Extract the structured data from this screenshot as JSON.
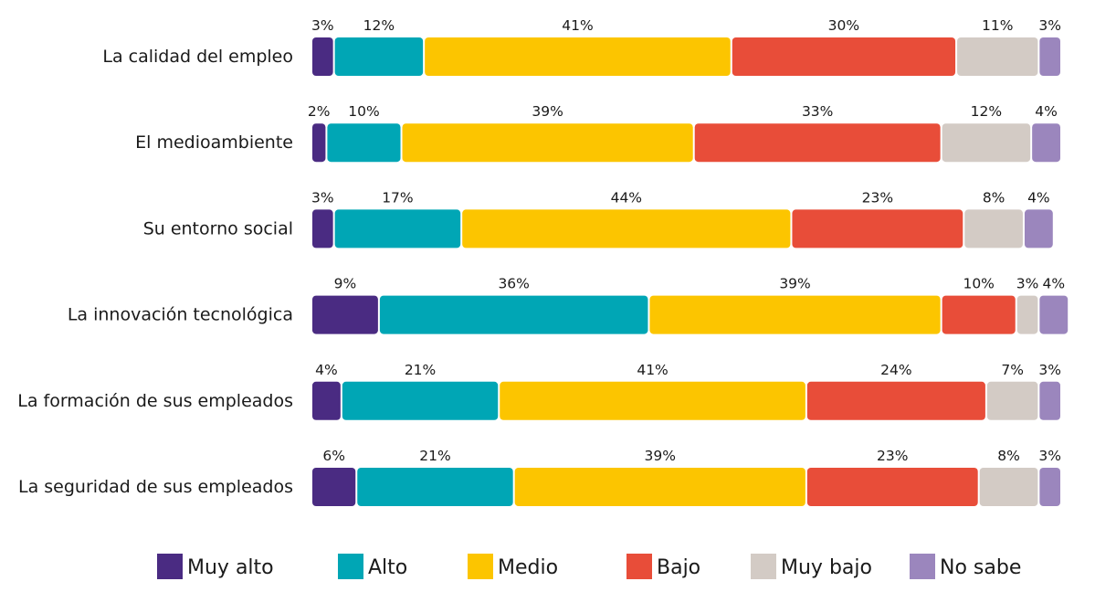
{
  "chart_data": {
    "type": "bar",
    "orientation": "horizontal",
    "stacked": true,
    "percent_stacked": true,
    "title": "",
    "xlabel": "",
    "ylabel": "",
    "xlim": [
      0,
      100
    ],
    "grid": false,
    "legend_position": "bottom",
    "categories": [
      "La calidad del empleo",
      "El medioambiente",
      "Su entorno social",
      "La innovación tecnológica",
      "La formación de sus empleados",
      "La seguridad de sus empleados"
    ],
    "series": [
      {
        "name": "Muy alto",
        "color": "#4a2b82",
        "values": [
          3,
          2,
          3,
          9,
          4,
          6
        ]
      },
      {
        "name": "Alto",
        "color": "#00a6b5",
        "values": [
          12,
          10,
          17,
          36,
          21,
          21
        ]
      },
      {
        "name": "Medio",
        "color": "#fcc500",
        "values": [
          41,
          39,
          44,
          39,
          41,
          39
        ]
      },
      {
        "name": "Bajo",
        "color": "#e84d39",
        "values": [
          30,
          33,
          23,
          10,
          24,
          23
        ]
      },
      {
        "name": "Muy bajo",
        "color": "#d3cbc5",
        "values": [
          11,
          12,
          8,
          3,
          7,
          8
        ]
      },
      {
        "name": "No sabe",
        "color": "#9b86bd",
        "values": [
          3,
          4,
          4,
          4,
          3,
          3
        ]
      }
    ],
    "value_suffix": "%"
  }
}
